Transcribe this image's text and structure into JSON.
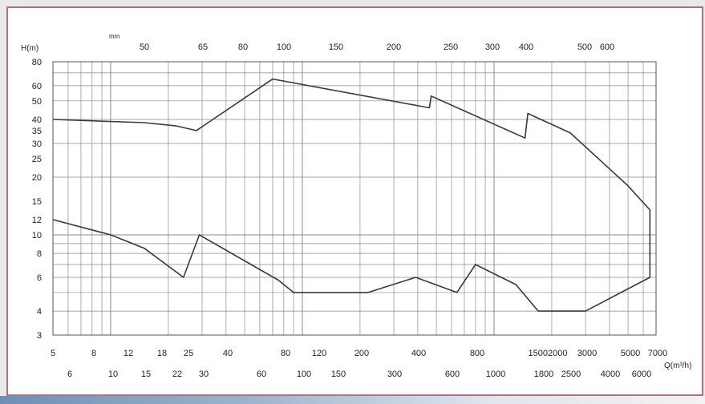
{
  "colors": {
    "border": "#b0707c",
    "grid": "#8a8a8a",
    "curve": "#3a3a3a"
  },
  "chart_data": {
    "type": "line",
    "title": "",
    "ylabel": "H(m)",
    "xlabel": "Q(m³/h)",
    "top_axis_label": "mm",
    "x_scale": "log",
    "y_scale": "log",
    "xlim": [
      5,
      7000
    ],
    "ylim": [
      3,
      80
    ],
    "grid": true,
    "y_ticks": [
      3,
      4,
      6,
      8,
      10,
      12,
      15,
      20,
      25,
      30,
      35,
      40,
      50,
      60,
      80
    ],
    "x_ticks_row1": [
      "5",
      "8",
      "12",
      "18",
      "25",
      "40",
      "80",
      "120",
      "200",
      "400",
      "800",
      "15002000",
      "3000",
      "5000",
      "7000"
    ],
    "x_ticks_row2": [
      "6",
      "10",
      "15",
      "22",
      "30",
      "60",
      "100",
      "150",
      "300",
      "600",
      "1000",
      "1800",
      "2500",
      "4000",
      "6000"
    ],
    "top_ticks": [
      "50",
      "65",
      "80",
      "100",
      "150",
      "200",
      "250",
      "300",
      "400",
      "500",
      "600"
    ],
    "series": [
      {
        "values": [
          [
            5,
            40
          ],
          [
            15,
            38.5
          ],
          [
            22,
            37
          ],
          [
            28,
            35
          ],
          [
            70,
            65
          ],
          [
            460,
            46
          ],
          [
            470,
            53
          ],
          [
            1450,
            32
          ],
          [
            1500,
            43
          ],
          [
            2500,
            34
          ],
          [
            5000,
            18
          ],
          [
            6500,
            13.5
          ]
        ]
      },
      {
        "values": [
          [
            5,
            12
          ],
          [
            10,
            10
          ],
          [
            15,
            8.5
          ],
          [
            24,
            6
          ],
          [
            29,
            10
          ],
          [
            75,
            5.8
          ],
          [
            90,
            5
          ],
          [
            220,
            5
          ],
          [
            390,
            6
          ],
          [
            640,
            5
          ],
          [
            800,
            7
          ],
          [
            1300,
            5.5
          ],
          [
            1700,
            4
          ],
          [
            3000,
            4
          ],
          [
            6500,
            6
          ],
          [
            6500,
            13.5
          ]
        ]
      }
    ]
  }
}
